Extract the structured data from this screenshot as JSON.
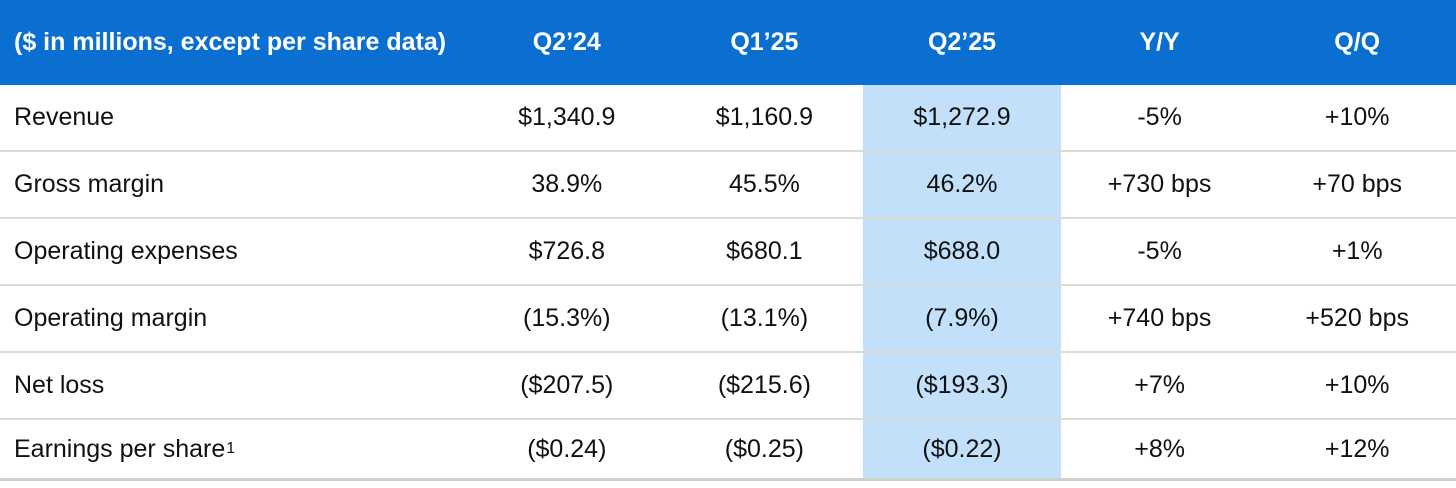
{
  "chart_data": {
    "type": "table",
    "header_label": "($ in millions, except per share data)",
    "columns": [
      "Q2’24",
      "Q1’25",
      "Q2’25",
      "Y/Y",
      "Q/Q"
    ],
    "highlighted_column": "Q2’25",
    "rows": [
      {
        "label": "Revenue",
        "values": [
          "$1,340.9",
          "$1,160.9",
          "$1,272.9",
          "-5%",
          "+10%"
        ]
      },
      {
        "label": "Gross margin",
        "values": [
          "38.9%",
          "45.5%",
          "46.2%",
          "+730 bps",
          "+70 bps"
        ]
      },
      {
        "label": "Operating expenses",
        "values": [
          "$726.8",
          "$680.1",
          "$688.0",
          "-5%",
          "+1%"
        ]
      },
      {
        "label": "Operating margin",
        "values": [
          "(15.3%)",
          "(13.1%)",
          "(7.9%)",
          "+740 bps",
          "+520 bps"
        ]
      },
      {
        "label": "Net loss",
        "values": [
          "($207.5)",
          "($215.6)",
          "($193.3)",
          "+7%",
          "+10%"
        ]
      },
      {
        "label": "Earnings per share",
        "sup": "1",
        "values": [
          "($0.24)",
          "($0.25)",
          "($0.22)",
          "+8%",
          "+12%"
        ]
      }
    ],
    "colors": {
      "header_bg": "#0a6fd0",
      "header_text": "#ffffff",
      "highlight_bg": "#c2e0f9",
      "row_divider": "#dedbd5",
      "bottom_border": "#d2cfca",
      "body_text": "#111111"
    }
  }
}
